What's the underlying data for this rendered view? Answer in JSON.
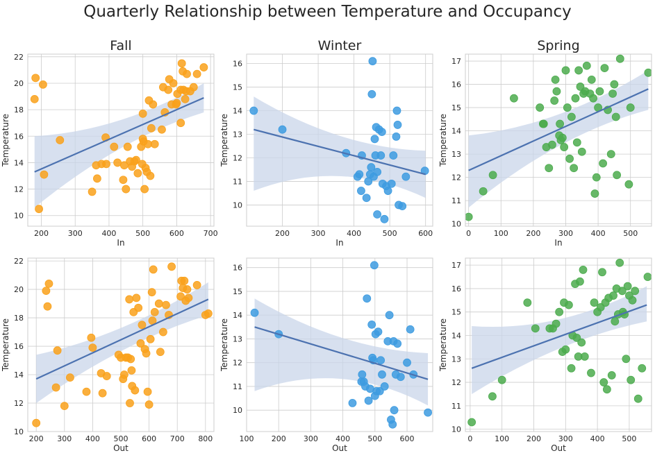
{
  "title": "Quarterly Relationship between Temperature and Occupancy",
  "colors": {
    "Fall": "#f9a11b",
    "Winter": "#3d9be0",
    "Spring": "#4cab4e",
    "fit_line": "#4c72b0",
    "ci_band": "#c9d6ea"
  },
  "chart_data": [
    {
      "type": "scatter",
      "season": "Fall",
      "title": "Fall",
      "xlabel": "In",
      "ylabel": "Temperature",
      "xlim": [
        160,
        710
      ],
      "ylim": [
        9.2,
        22.2
      ],
      "xticks": [
        200,
        300,
        400,
        500,
        600,
        700
      ],
      "yticks": [
        10,
        12,
        14,
        16,
        18,
        20,
        22
      ],
      "fit": {
        "x": [
          180,
          680
        ],
        "y": [
          13.3,
          18.9
        ],
        "ci_lower": [
          10.6,
          17.8
        ],
        "ci_upper": [
          16.0,
          20.0
        ]
      },
      "x": [
        180,
        183,
        193,
        205,
        208,
        255,
        350,
        362,
        365,
        378,
        390,
        392,
        415,
        425,
        442,
        445,
        450,
        455,
        462,
        468,
        475,
        480,
        485,
        495,
        498,
        500,
        500,
        502,
        505,
        508,
        512,
        515,
        518,
        522,
        525,
        530,
        535,
        556,
        560,
        565,
        575,
        578,
        585,
        590,
        598,
        600,
        602,
        612,
        612,
        615,
        618,
        620,
        625,
        628,
        630,
        640,
        650,
        660,
        680
      ],
      "y": [
        18.8,
        20.4,
        10.5,
        19.9,
        13.1,
        15.7,
        11.8,
        13.8,
        12.8,
        13.9,
        15.9,
        13.9,
        15.2,
        14.0,
        12.7,
        13.8,
        12.0,
        15.2,
        14.1,
        13.7,
        14.1,
        14.2,
        13.2,
        15.2,
        13.9,
        15.8,
        17.7,
        15.6,
        12.0,
        13.6,
        13.3,
        15.4,
        18.7,
        13.0,
        16.6,
        18.4,
        15.4,
        16.5,
        19.7,
        17.8,
        19.5,
        20.3,
        18.4,
        20.0,
        18.4,
        18.5,
        19.2,
        17.0,
        19.5,
        21.5,
        20.9,
        19.5,
        18.8,
        19.4,
        20.7,
        19.4,
        19.7,
        20.7,
        21.2
      ]
    },
    {
      "type": "scatter",
      "season": "Winter",
      "title": "Winter",
      "xlabel": "In",
      "ylabel": "Temperature",
      "xlim": [
        100,
        620
      ],
      "ylim": [
        9.1,
        16.4
      ],
      "xticks": [
        200,
        300,
        400,
        500,
        600
      ],
      "yticks": [
        10,
        11,
        12,
        13,
        14,
        15,
        16
      ],
      "fit": {
        "x": [
          120,
          600
        ],
        "y": [
          13.2,
          11.3
        ],
        "ci_lower": [
          10.6,
          10.3
        ],
        "ci_upper": [
          14.6,
          12.3
        ]
      },
      "x": [
        120,
        200,
        378,
        410,
        415,
        420,
        422,
        435,
        440,
        445,
        448,
        450,
        452,
        455,
        458,
        460,
        462,
        465,
        465,
        470,
        475,
        478,
        480,
        485,
        490,
        495,
        505,
        510,
        518,
        520,
        522,
        525,
        535,
        545,
        598
      ],
      "y": [
        14.0,
        13.2,
        12.2,
        11.2,
        11.3,
        10.6,
        12.1,
        10.3,
        11.0,
        11.3,
        11.6,
        14.7,
        16.1,
        11.2,
        12.8,
        12.1,
        13.3,
        11.4,
        9.6,
        13.2,
        12.1,
        13.1,
        10.9,
        9.4,
        10.8,
        10.6,
        10.9,
        12.1,
        12.9,
        14.0,
        13.4,
        10.0,
        9.95,
        11.2,
        11.45
      ]
    },
    {
      "type": "scatter",
      "season": "Spring",
      "title": "Spring",
      "xlabel": "In",
      "ylabel": "Temperature",
      "xlim": [
        -10,
        565
      ],
      "ylim": [
        9.9,
        17.3
      ],
      "xticks": [
        0,
        100,
        200,
        300,
        400,
        500
      ],
      "yticks": [
        10,
        11,
        12,
        13,
        14,
        15,
        16,
        17
      ],
      "fit": {
        "x": [
          0,
          555
        ],
        "y": [
          12.3,
          15.8
        ],
        "ci_lower": [
          10.7,
          14.9
        ],
        "ci_upper": [
          13.8,
          16.6
        ]
      },
      "x": [
        0,
        45,
        75,
        140,
        220,
        230,
        232,
        240,
        248,
        258,
        265,
        268,
        272,
        280,
        282,
        285,
        290,
        295,
        300,
        305,
        312,
        318,
        325,
        330,
        335,
        340,
        345,
        350,
        355,
        360,
        365,
        375,
        380,
        385,
        390,
        395,
        400,
        405,
        415,
        420,
        430,
        440,
        445,
        450,
        455,
        458,
        468,
        495,
        500,
        555
      ],
      "y": [
        10.3,
        11.4,
        12.1,
        15.4,
        15.0,
        14.3,
        14.3,
        13.3,
        12.4,
        13.4,
        15.3,
        16.2,
        15.7,
        13.8,
        14.3,
        13.6,
        13.7,
        13.3,
        16.6,
        15.0,
        12.8,
        14.6,
        12.4,
        15.4,
        13.5,
        16.6,
        15.9,
        13.1,
        15.6,
        15.7,
        16.8,
        15.6,
        16.2,
        15.4,
        11.3,
        12.0,
        15.0,
        15.7,
        12.6,
        16.7,
        14.9,
        13.0,
        15.6,
        16.0,
        14.6,
        12.1,
        17.1,
        11.7,
        15.0,
        16.5
      ]
    },
    {
      "type": "scatter",
      "season": "Fall",
      "title": "",
      "xlabel": "Out",
      "ylabel": "Temperature",
      "xlim": [
        170,
        830
      ],
      "ylim": [
        10,
        22.2
      ],
      "xticks": [
        200,
        300,
        400,
        500,
        600,
        700,
        800
      ],
      "yticks": [
        10,
        12,
        14,
        16,
        18,
        20,
        22
      ],
      "fit": {
        "x": [
          200,
          810
        ],
        "y": [
          13.7,
          19.3
        ],
        "ci_lower": [
          12.0,
          18.2
        ],
        "ci_upper": [
          15.4,
          20.5
        ]
      },
      "x": [
        200,
        235,
        240,
        245,
        270,
        275,
        300,
        320,
        378,
        395,
        400,
        430,
        435,
        450,
        492,
        500,
        508,
        512,
        518,
        525,
        530,
        532,
        535,
        538,
        540,
        545,
        550,
        555,
        562,
        570,
        575,
        585,
        590,
        595,
        600,
        605,
        610,
        612,
        615,
        620,
        635,
        640,
        650,
        660,
        670,
        680,
        712,
        715,
        720,
        725,
        730,
        735,
        740,
        770,
        800,
        810
      ],
      "y": [
        10.6,
        19.9,
        18.8,
        20.4,
        13.1,
        15.7,
        11.8,
        13.8,
        12.8,
        16.6,
        15.9,
        14.1,
        12.7,
        13.9,
        15.4,
        15.2,
        13.7,
        14.0,
        15.2,
        15.2,
        19.3,
        12.0,
        15.1,
        14.3,
        13.2,
        18.4,
        12.9,
        19.4,
        18.7,
        16.2,
        17.5,
        15.8,
        15.5,
        12.8,
        11.9,
        16.5,
        19.8,
        17.8,
        21.4,
        18.4,
        19.0,
        15.6,
        17.0,
        18.9,
        18.2,
        21.6,
        19.5,
        20.6,
        20.1,
        20.6,
        19.2,
        20.0,
        19.4,
        20.3,
        18.2,
        18.3
      ]
    },
    {
      "type": "scatter",
      "season": "Winter",
      "title": "",
      "xlabel": "Out",
      "ylabel": "Temperature",
      "xlim": [
        100,
        680
      ],
      "ylim": [
        9.1,
        16.4
      ],
      "xticks": [
        100,
        200,
        300,
        400,
        500,
        600
      ],
      "yticks": [
        10,
        11,
        12,
        13,
        14,
        15,
        16
      ],
      "fit": {
        "x": [
          125,
          665
        ],
        "y": [
          13.5,
          11.3
        ],
        "ci_lower": [
          10.8,
          10.2
        ],
        "ci_upper": [
          14.7,
          12.4
        ]
      },
      "x": [
        125,
        200,
        430,
        458,
        460,
        465,
        470,
        475,
        480,
        485,
        490,
        492,
        495,
        498,
        500,
        502,
        505,
        510,
        515,
        518,
        522,
        530,
        540,
        545,
        550,
        555,
        558,
        560,
        565,
        570,
        580,
        600,
        610,
        620,
        665
      ],
      "y": [
        14.1,
        13.2,
        10.3,
        11.2,
        11.5,
        11.2,
        11.0,
        14.7,
        10.4,
        10.9,
        13.6,
        12.2,
        12.1,
        16.1,
        10.6,
        13.2,
        10.8,
        13.3,
        10.8,
        12.1,
        11.5,
        11.0,
        12.9,
        14.0,
        9.6,
        9.4,
        12.9,
        10.0,
        11.5,
        12.8,
        11.4,
        12.0,
        13.4,
        11.5,
        9.9
      ]
    },
    {
      "type": "scatter",
      "season": "Spring",
      "title": "",
      "xlabel": "Out",
      "ylabel": "Temperature",
      "xlim": [
        -15,
        570
      ],
      "ylim": [
        9.9,
        17.3
      ],
      "xticks": [
        0,
        100,
        200,
        300,
        400,
        500
      ],
      "yticks": [
        10,
        11,
        12,
        13,
        14,
        15,
        16,
        17
      ],
      "fit": {
        "x": [
          5,
          555
        ],
        "y": [
          12.6,
          15.3
        ],
        "ci_lower": [
          11.5,
          14.6
        ],
        "ci_upper": [
          14.4,
          16.1
        ]
      },
      "x": [
        5,
        70,
        100,
        180,
        205,
        250,
        260,
        270,
        280,
        290,
        295,
        300,
        310,
        318,
        322,
        330,
        335,
        340,
        345,
        350,
        355,
        360,
        380,
        390,
        400,
        410,
        415,
        420,
        425,
        430,
        435,
        445,
        450,
        455,
        460,
        465,
        470,
        478,
        480,
        485,
        490,
        495,
        500,
        505,
        510,
        518,
        528,
        540,
        558
      ],
      "y": [
        10.3,
        11.4,
        12.1,
        15.4,
        14.3,
        14.3,
        14.3,
        14.5,
        15.0,
        13.3,
        15.4,
        13.4,
        15.3,
        12.6,
        14.0,
        16.2,
        13.9,
        13.1,
        16.3,
        13.7,
        16.8,
        13.1,
        12.4,
        15.4,
        15.0,
        15.2,
        16.7,
        12.0,
        15.4,
        11.7,
        15.6,
        12.3,
        15.7,
        14.6,
        16.0,
        14.9,
        17.1,
        15.9,
        15.0,
        14.9,
        13.0,
        16.1,
        15.7,
        12.1,
        15.5,
        15.9,
        11.3,
        12.6,
        16.5
      ]
    }
  ]
}
